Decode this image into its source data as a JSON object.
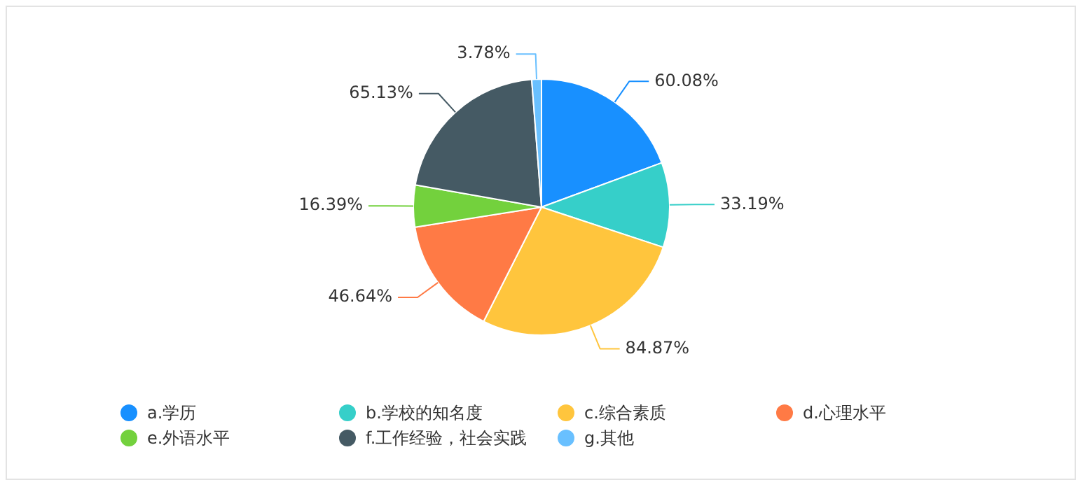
{
  "chart_data": {
    "type": "pie",
    "categories": [
      "a.学历",
      "b.学校的知名度",
      "c.综合素质",
      "d.心理水平",
      "e.外语水平",
      "f.工作经验，社会实践",
      "g.其他"
    ],
    "values": [
      60.08,
      33.19,
      84.87,
      46.64,
      16.39,
      65.13,
      3.78
    ],
    "value_labels": [
      "60.08%",
      "33.19%",
      "84.87%",
      "46.64%",
      "16.39%",
      "65.13%",
      "3.78%"
    ],
    "colors": [
      "#1890ff",
      "#36cfc9",
      "#ffc53d",
      "#ff7a45",
      "#73d13d",
      "#455a64",
      "#69c0ff"
    ],
    "legend": "bottom"
  }
}
